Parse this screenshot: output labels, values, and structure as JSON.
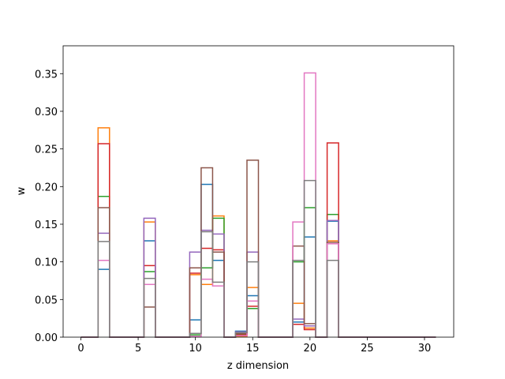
{
  "chart_data": {
    "type": "step",
    "where": "mid",
    "xlabel": "z dimension",
    "ylabel": "w",
    "x": [
      0,
      1,
      2,
      3,
      4,
      5,
      6,
      7,
      8,
      9,
      10,
      11,
      12,
      13,
      14,
      15,
      16,
      17,
      18,
      19,
      20,
      21,
      22,
      23,
      24,
      25,
      26,
      27,
      28,
      29,
      30,
      31
    ],
    "series": [
      {
        "color": "#1f77b4",
        "values": [
          0,
          0,
          0.09,
          0,
          0,
          0,
          0.128,
          0,
          0,
          0,
          0.023,
          0.203,
          0.102,
          0,
          0.008,
          0.055,
          0,
          0,
          0,
          0.02,
          0.133,
          0,
          0.154,
          0,
          0,
          0,
          0,
          0,
          0,
          0,
          0,
          0
        ]
      },
      {
        "color": "#ff7f0e",
        "values": [
          0,
          0,
          0.278,
          0,
          0,
          0,
          0.153,
          0,
          0,
          0,
          0.083,
          0.07,
          0.161,
          0,
          0.001,
          0.066,
          0,
          0,
          0,
          0.045,
          0.012,
          0,
          0.128,
          0,
          0,
          0,
          0,
          0,
          0,
          0,
          0,
          0
        ]
      },
      {
        "color": "#2ca02c",
        "values": [
          0,
          0,
          0.187,
          0,
          0,
          0,
          0.087,
          0,
          0,
          0,
          0.003,
          0.092,
          0.158,
          0,
          0.004,
          0.038,
          0,
          0,
          0,
          0.1,
          0.172,
          0,
          0.163,
          0,
          0,
          0,
          0,
          0,
          0,
          0,
          0,
          0
        ]
      },
      {
        "color": "#d62728",
        "values": [
          0,
          0,
          0.257,
          0,
          0,
          0,
          0.095,
          0,
          0,
          0,
          0.085,
          0.118,
          0.116,
          0,
          0.003,
          0.041,
          0,
          0,
          0,
          0.017,
          0.01,
          0,
          0.258,
          0,
          0,
          0,
          0,
          0,
          0,
          0,
          0,
          0
        ]
      },
      {
        "color": "#9467bd",
        "values": [
          0,
          0,
          0.138,
          0,
          0,
          0,
          0.158,
          0,
          0,
          0,
          0.113,
          0.142,
          0.137,
          0,
          0.007,
          0.113,
          0,
          0,
          0,
          0.024,
          0.015,
          0,
          0.155,
          0,
          0,
          0,
          0,
          0,
          0,
          0,
          0,
          0
        ]
      },
      {
        "color": "#8c564b",
        "values": [
          0,
          0,
          0.172,
          0,
          0,
          0,
          0.04,
          0,
          0,
          0,
          0.092,
          0.225,
          0.113,
          0,
          0.005,
          0.235,
          0,
          0,
          0,
          0.121,
          0.018,
          0,
          0.126,
          0,
          0,
          0,
          0,
          0,
          0,
          0,
          0,
          0
        ]
      },
      {
        "color": "#e377c2",
        "values": [
          0,
          0,
          0.102,
          0,
          0,
          0,
          0.07,
          0,
          0,
          0,
          0.001,
          0.077,
          0.068,
          0,
          0.002,
          0.048,
          0,
          0,
          0,
          0.153,
          0.351,
          0,
          0.124,
          0,
          0,
          0,
          0,
          0,
          0,
          0,
          0,
          0
        ]
      },
      {
        "color": "#7f7f7f",
        "values": [
          0,
          0,
          0.127,
          0,
          0,
          0,
          0.078,
          0,
          0,
          0,
          0.005,
          0.14,
          0.073,
          0,
          0.006,
          0.1,
          0,
          0,
          0,
          0.102,
          0.208,
          0,
          0.102,
          0,
          0,
          0,
          0,
          0,
          0,
          0,
          0,
          0
        ]
      }
    ],
    "xlim": [
      -1.55,
      32.55
    ],
    "xticks": [
      0,
      5,
      10,
      15,
      20,
      25,
      30
    ],
    "ylim": [
      0,
      0.387
    ],
    "yticks": [
      {
        "value": 0,
        "label": "0.00"
      },
      {
        "value": 0.05,
        "label": "0.05"
      },
      {
        "value": 0.1,
        "label": "0.10"
      },
      {
        "value": 0.15,
        "label": "0.15"
      },
      {
        "value": 0.2,
        "label": "0.20"
      },
      {
        "value": 0.25,
        "label": "0.25"
      },
      {
        "value": 0.3,
        "label": "0.30"
      },
      {
        "value": 0.35,
        "label": "0.35"
      }
    ]
  }
}
